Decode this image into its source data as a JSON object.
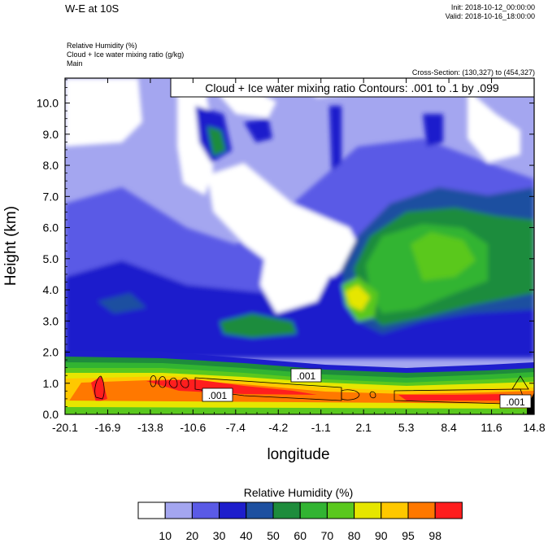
{
  "header": {
    "title": "W-E at 10S",
    "init": "Init: 2018-10-12_00:00:00",
    "valid": "Valid: 2018-10-16_18:00:00",
    "field1": "Relative Humidity   (%)",
    "field2": "Cloud + Ice water mixing ratio   (g/kg)",
    "field3": "Main",
    "cross_section": "Cross-Section: (130,327) to (454,327)"
  },
  "chart_data": {
    "type": "heatmap",
    "contour_label": "Cloud + Ice water mixing ratio Contours: .001 to .1 by .099",
    "xlabel": "longitude",
    "ylabel": "Height (km)",
    "x_ticks": [
      "-20.1",
      "-16.9",
      "-13.8",
      "-10.6",
      "-7.4",
      "-4.2",
      "-1.1",
      "2.1",
      "5.3",
      "8.4",
      "11.6",
      "14.8"
    ],
    "xlim": [
      -20.1,
      14.8
    ],
    "y_ticks": [
      "0.0",
      "1.0",
      "2.0",
      "3.0",
      "4.0",
      "5.0",
      "6.0",
      "7.0",
      "8.0",
      "9.0",
      "10.0"
    ],
    "ylim": [
      0,
      10.8
    ],
    "contour_values": [
      ".001",
      ".001",
      ".001"
    ],
    "colorbar": {
      "title": "Relative Humidity  (%)",
      "labels": [
        "10",
        "20",
        "30",
        "40",
        "50",
        "60",
        "70",
        "80",
        "90",
        "95",
        "98"
      ],
      "colors": [
        "#ffffff",
        "#a4a6f0",
        "#5a5ae6",
        "#1e1ecc",
        "#1e50a0",
        "#1e8c3c",
        "#32b432",
        "#5ac81e",
        "#e6e600",
        "#ffc800",
        "#ff7800",
        "#ff1e1e"
      ]
    }
  }
}
